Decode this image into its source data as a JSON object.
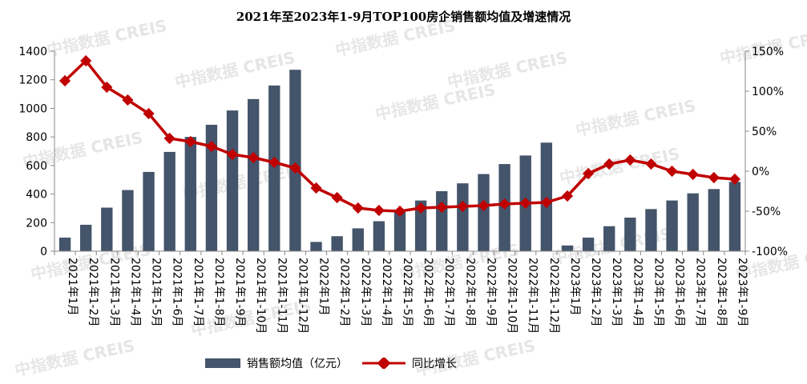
{
  "chart_data": {
    "type": "bar+line",
    "title": "2021年至2023年1-9月TOP100房企销售额均值及增速情况",
    "categories": [
      "2021年1月",
      "2021年1-2月",
      "2021年1-3月",
      "2021年1-4月",
      "2021年1-5月",
      "2021年1-6月",
      "2021年1-7月",
      "2021年1-8月",
      "2021年1-9月",
      "2021年1-10月",
      "2021年1-11月",
      "2021年1-12月",
      "2022年1月",
      "2022年1-2月",
      "2022年1-3月",
      "2022年1-4月",
      "2022年1-5月",
      "2022年1-6月",
      "2022年1-7月",
      "2022年1-8月",
      "2022年1-9月",
      "2022年1-10月",
      "2022年1-11月",
      "2022年1-12月",
      "2023年1月",
      "2023年1-2月",
      "2023年1-3月",
      "2023年1-4月",
      "2023年1-5月",
      "2023年1-6月",
      "2023年1-7月",
      "2023年1-8月",
      "2023年1-9月"
    ],
    "series": [
      {
        "name": "销售额均值（亿元）",
        "type": "bar",
        "axis": "left",
        "color": "#44546a",
        "values": [
          95,
          185,
          305,
          428,
          555,
          695,
          800,
          885,
          985,
          1065,
          1160,
          1270,
          65,
          105,
          160,
          210,
          275,
          355,
          420,
          475,
          540,
          610,
          670,
          760,
          40,
          95,
          175,
          235,
          295,
          355,
          405,
          435,
          485
        ]
      },
      {
        "name": "同比增长",
        "type": "line",
        "axis": "right",
        "color": "#c00000",
        "values": [
          113,
          138,
          105,
          89,
          72,
          41,
          37,
          31,
          21,
          17,
          11,
          4,
          -21,
          -33,
          -46,
          -49,
          -50,
          -46,
          -45,
          -44,
          -43,
          -41,
          -40,
          -39,
          -31,
          -3,
          9,
          14,
          9,
          0,
          -4,
          -8,
          -10
        ]
      }
    ],
    "left_axis": {
      "min": 0,
      "max": 1400,
      "step": 200,
      "ticks": [
        "0",
        "200",
        "400",
        "600",
        "800",
        "1000",
        "1200",
        "1400"
      ]
    },
    "right_axis": {
      "min": -100,
      "max": 150,
      "step": 50,
      "ticks": [
        "-100%",
        "-50%",
        "0%",
        "50%",
        "100%",
        "150%"
      ]
    },
    "legend_position": "bottom",
    "grid": false
  },
  "watermark": "中指数据 CREIS"
}
